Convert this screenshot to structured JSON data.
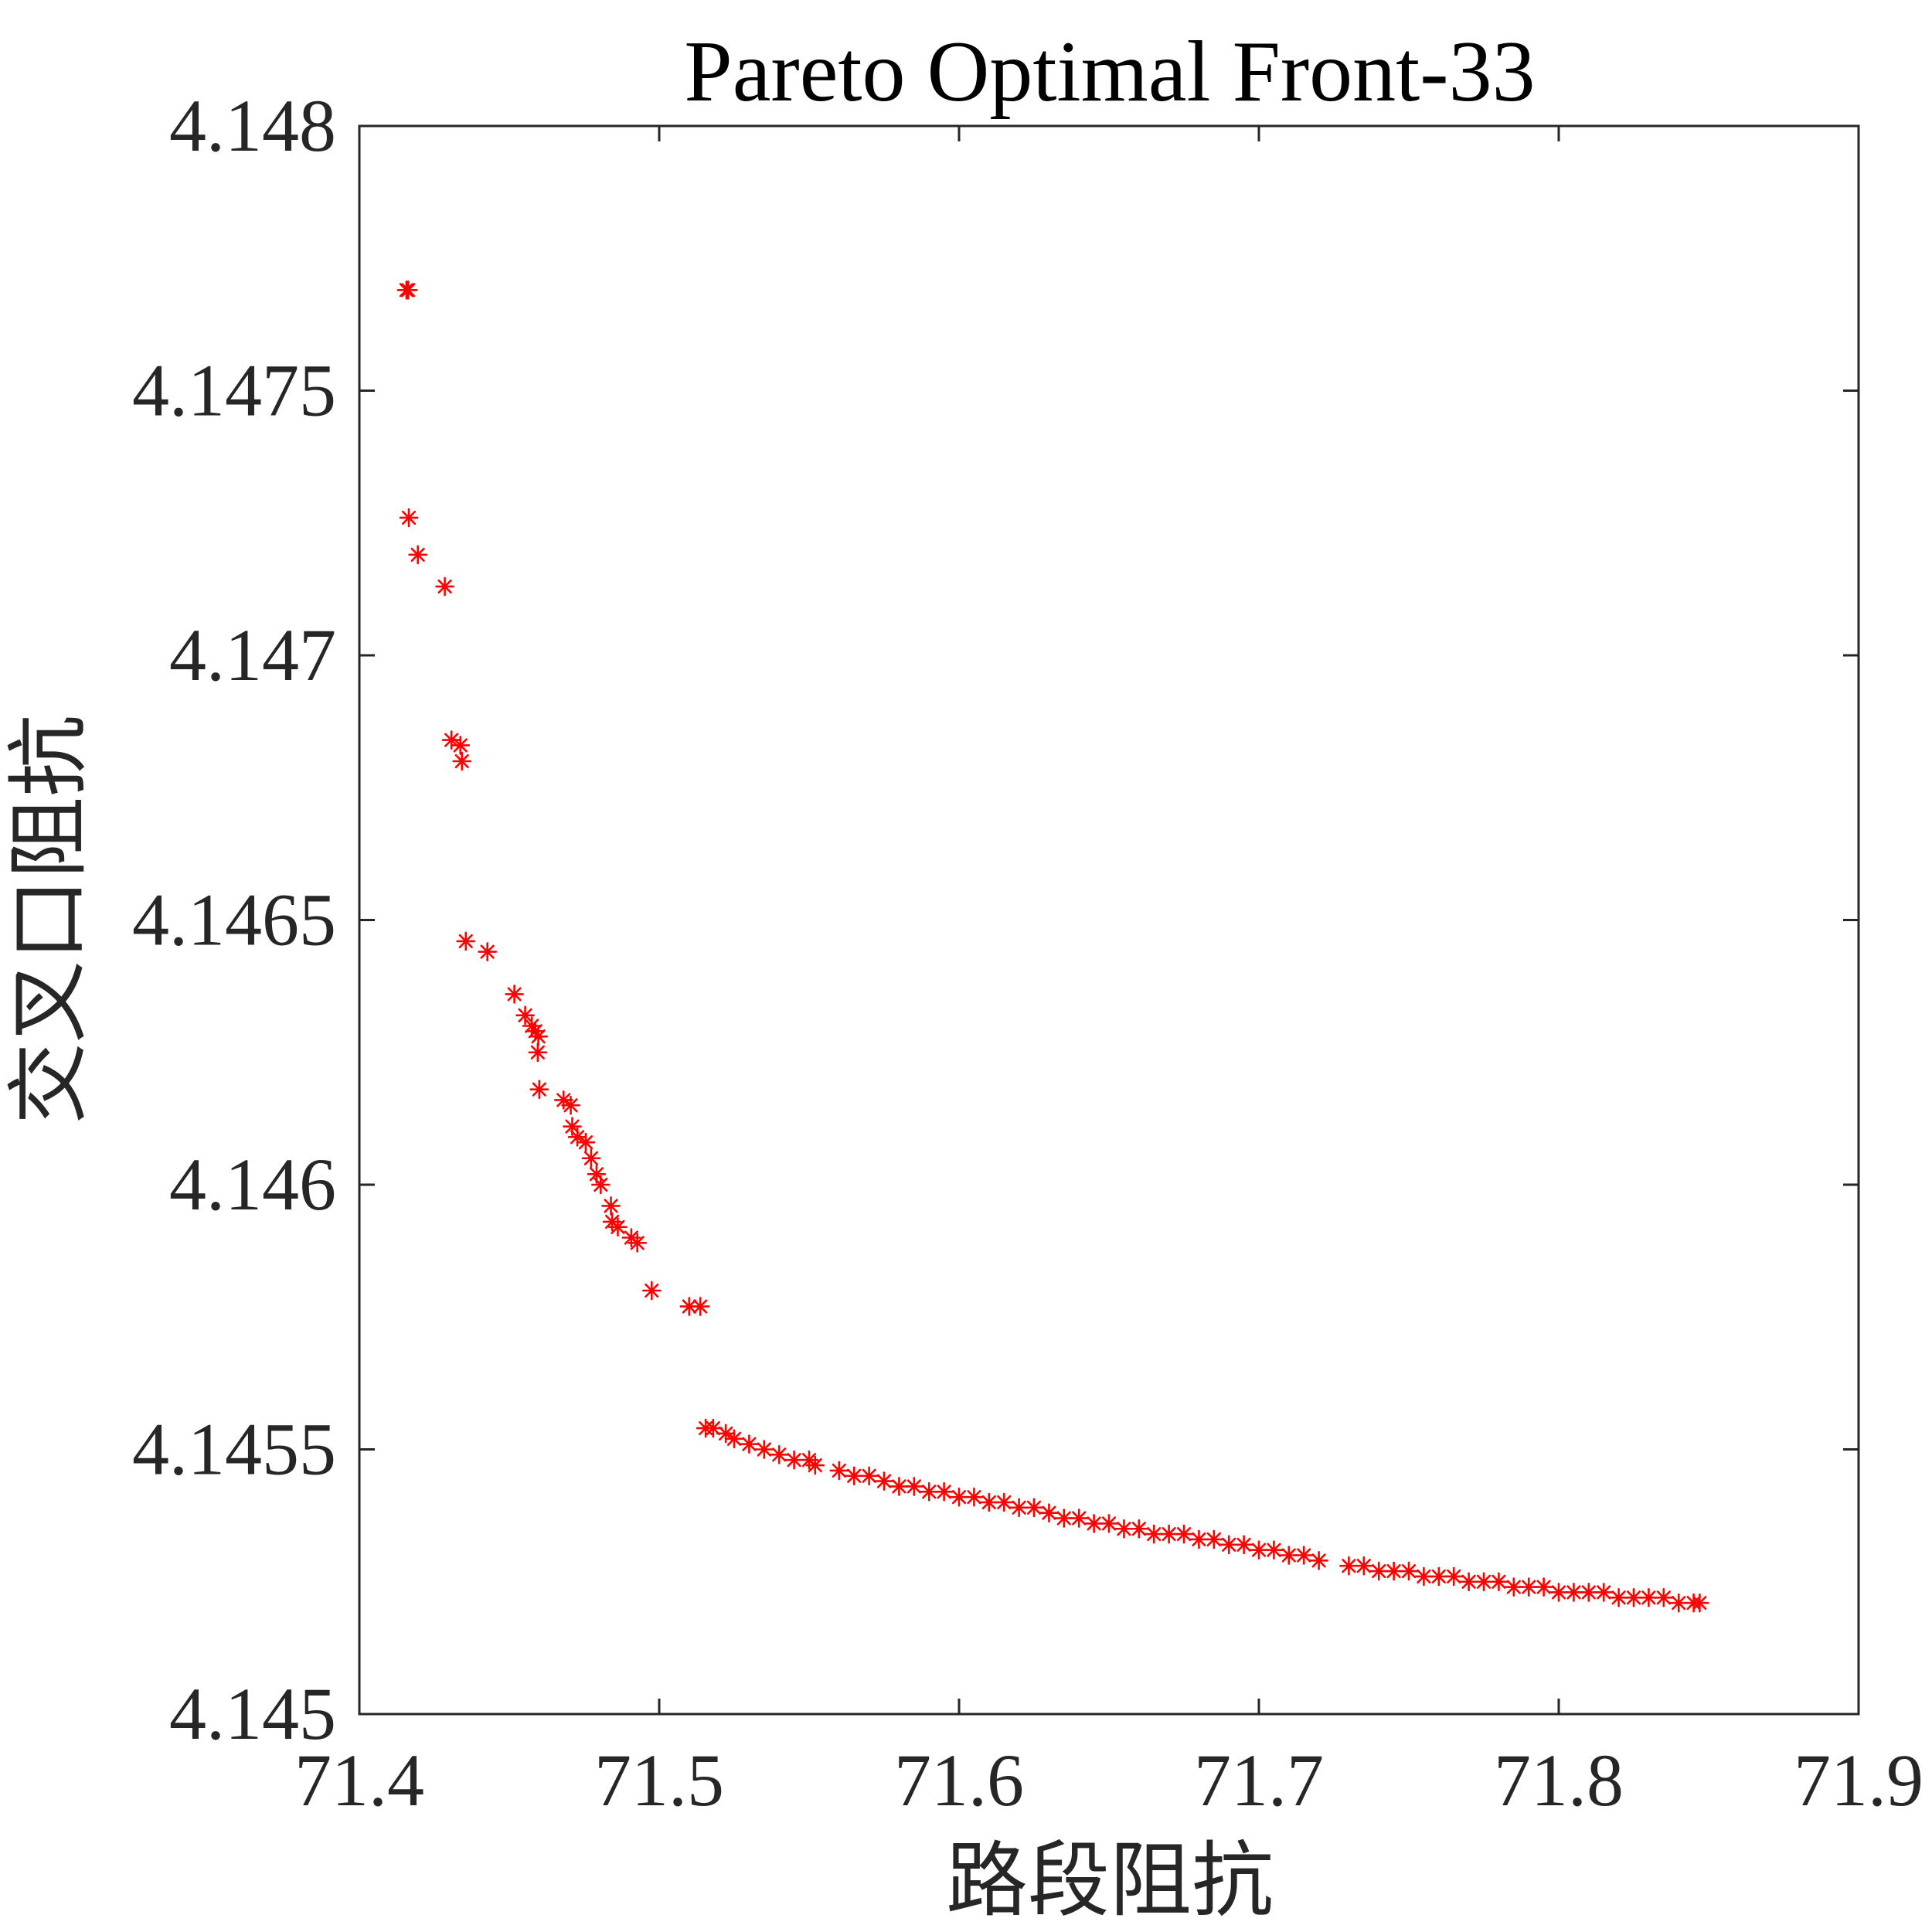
{
  "chart_data": {
    "type": "scatter",
    "title": "Pareto Optimal Front-33",
    "xlabel": "路段阻抗",
    "ylabel": "交叉口阻抗",
    "xlim": [
      71.4,
      71.9
    ],
    "ylim": [
      4.145,
      4.148
    ],
    "xticks": [
      "71.4",
      "71.5",
      "71.6",
      "71.7",
      "71.8",
      "71.9"
    ],
    "yticks": [
      "4.145",
      "4.1455",
      "4.146",
      "4.1465",
      "4.147",
      "4.1475",
      "4.148"
    ],
    "xtick_values": [
      71.4,
      71.5,
      71.6,
      71.7,
      71.8,
      71.9
    ],
    "ytick_values": [
      4.145,
      4.1455,
      4.146,
      4.1465,
      4.147,
      4.1475,
      4.148
    ],
    "grid": false,
    "marker": "asterisk",
    "marker_color": "#ff0000",
    "axis_color": "#262626",
    "series": [
      {
        "name": "",
        "points": [
          [
            71.4157,
            4.14769
          ],
          [
            71.4163,
            4.14769
          ],
          [
            71.4165,
            4.14726
          ],
          [
            71.4195,
            4.14719
          ],
          [
            71.4285,
            4.14713
          ],
          [
            71.4307,
            4.14684
          ],
          [
            71.4337,
            4.14683
          ],
          [
            71.4342,
            4.1468
          ],
          [
            71.4355,
            4.14646
          ],
          [
            71.4427,
            4.14644
          ],
          [
            71.4517,
            4.14636
          ],
          [
            71.4553,
            4.14632
          ],
          [
            71.4575,
            4.1463
          ],
          [
            71.4587,
            4.14629
          ],
          [
            71.4597,
            4.14628
          ],
          [
            71.4595,
            4.14625
          ],
          [
            71.46,
            4.14618
          ],
          [
            71.4681,
            4.14616
          ],
          [
            71.4705,
            4.14615
          ],
          [
            71.471,
            4.14611
          ],
          [
            71.4727,
            4.14609
          ],
          [
            71.4755,
            4.14608
          ],
          [
            71.4773,
            4.14605
          ],
          [
            71.4791,
            4.14602
          ],
          [
            71.4805,
            4.146
          ],
          [
            71.4839,
            4.14596
          ],
          [
            71.4843,
            4.14593
          ],
          [
            71.4862,
            4.14592
          ],
          [
            71.4907,
            4.1459
          ],
          [
            71.4927,
            4.14589
          ],
          [
            71.4975,
            4.1458
          ],
          [
            71.51,
            4.14577
          ],
          [
            71.5137,
            4.14577
          ],
          [
            71.5155,
            4.14554
          ],
          [
            71.518,
            4.14554
          ],
          [
            71.5222,
            4.14553
          ],
          [
            71.525,
            4.14552
          ],
          [
            71.53,
            4.14551
          ],
          [
            71.535,
            4.1455
          ],
          [
            71.54,
            4.14549
          ],
          [
            71.545,
            4.14548
          ],
          [
            71.55,
            4.14548
          ],
          [
            71.552,
            4.14547
          ],
          [
            71.56,
            4.14546
          ],
          [
            71.565,
            4.14545
          ],
          [
            71.57,
            4.14545
          ],
          [
            71.575,
            4.14544
          ],
          [
            71.58,
            4.14543
          ],
          [
            71.585,
            4.14543
          ],
          [
            71.59,
            4.14542
          ],
          [
            71.595,
            4.14542
          ],
          [
            71.6,
            4.14541
          ],
          [
            71.605,
            4.14541
          ],
          [
            71.61,
            4.1454
          ],
          [
            71.615,
            4.1454
          ],
          [
            71.62,
            4.14539
          ],
          [
            71.625,
            4.14539
          ],
          [
            71.63,
            4.14538
          ],
          [
            71.635,
            4.14537
          ],
          [
            71.64,
            4.14537
          ],
          [
            71.645,
            4.14536
          ],
          [
            71.65,
            4.14536
          ],
          [
            71.655,
            4.14535
          ],
          [
            71.66,
            4.14535
          ],
          [
            71.665,
            4.14534
          ],
          [
            71.67,
            4.14534
          ],
          [
            71.675,
            4.14534
          ],
          [
            71.68,
            4.14533
          ],
          [
            71.685,
            4.14533
          ],
          [
            71.69,
            4.14532
          ],
          [
            71.695,
            4.14532
          ],
          [
            71.7,
            4.14531
          ],
          [
            71.705,
            4.14531
          ],
          [
            71.71,
            4.1453
          ],
          [
            71.715,
            4.1453
          ],
          [
            71.72,
            4.14529
          ],
          [
            71.73,
            4.14528
          ],
          [
            71.735,
            4.14528
          ],
          [
            71.74,
            4.14527
          ],
          [
            71.745,
            4.14527
          ],
          [
            71.75,
            4.14527
          ],
          [
            71.755,
            4.14526
          ],
          [
            71.76,
            4.14526
          ],
          [
            71.765,
            4.14526
          ],
          [
            71.77,
            4.14525
          ],
          [
            71.775,
            4.14525
          ],
          [
            71.78,
            4.14525
          ],
          [
            71.785,
            4.14524
          ],
          [
            71.79,
            4.14524
          ],
          [
            71.795,
            4.14524
          ],
          [
            71.8,
            4.14523
          ],
          [
            71.805,
            4.14523
          ],
          [
            71.81,
            4.14523
          ],
          [
            71.815,
            4.14523
          ],
          [
            71.82,
            4.14522
          ],
          [
            71.825,
            4.14522
          ],
          [
            71.83,
            4.14522
          ],
          [
            71.835,
            4.14522
          ],
          [
            71.84,
            4.14521
          ],
          [
            71.845,
            4.14521
          ],
          [
            71.847,
            4.14521
          ]
        ]
      }
    ]
  }
}
